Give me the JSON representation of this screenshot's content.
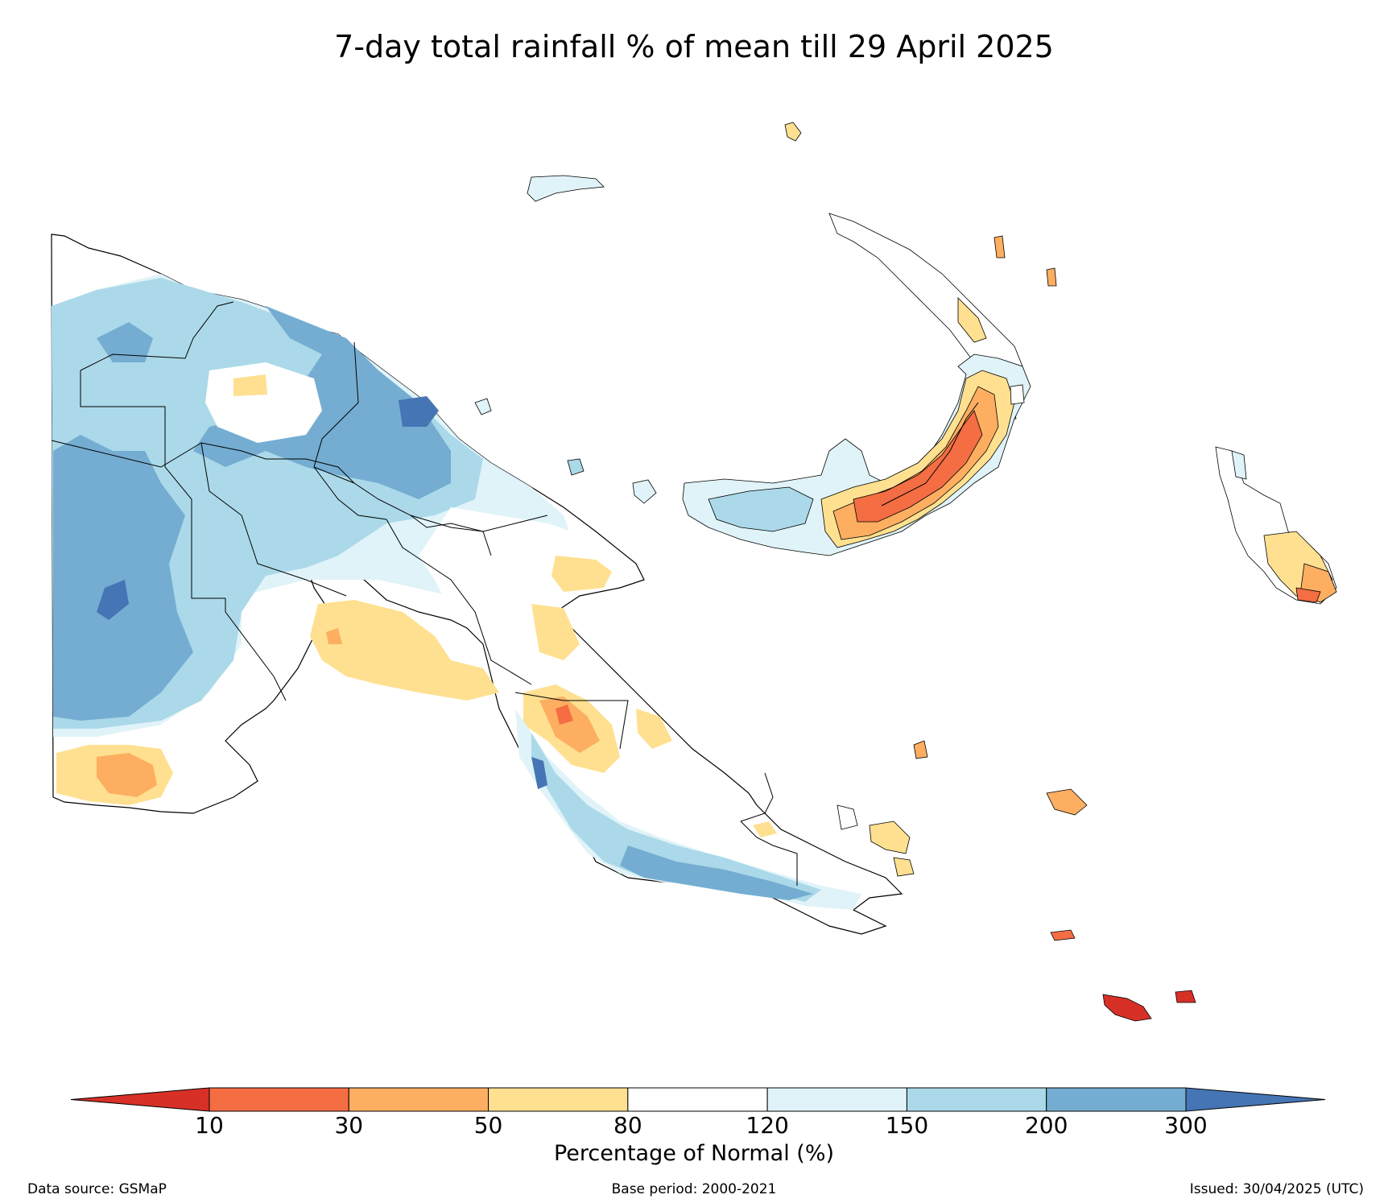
{
  "title": "7-day total rainfall % of mean till 29 April 2025",
  "colorbar": {
    "label": "Percentage of Normal (%)",
    "ticks": [
      "10",
      "30",
      "50",
      "80",
      "120",
      "150",
      "200",
      "300"
    ],
    "classes": [
      {
        "range": "<10",
        "color": "#d73027"
      },
      {
        "range": "10-30",
        "color": "#f46d43"
      },
      {
        "range": "30-50",
        "color": "#fdae61"
      },
      {
        "range": "50-80",
        "color": "#fee090"
      },
      {
        "range": "80-120",
        "color": "#ffffff"
      },
      {
        "range": "120-150",
        "color": "#e0f3f8"
      },
      {
        "range": "150-200",
        "color": "#abd9e9"
      },
      {
        "range": "200-300",
        "color": "#74add1"
      },
      {
        "range": ">300",
        "color": "#4575b4"
      }
    ]
  },
  "footer": {
    "source": "Data source: GSMaP",
    "base_period": "Base period: 2000-2021",
    "issued": "Issued: 30/04/2025 (UTC)"
  }
}
